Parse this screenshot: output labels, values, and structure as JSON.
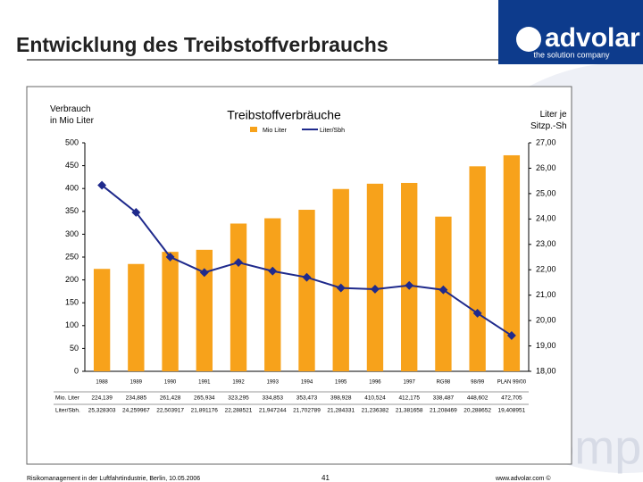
{
  "header": {
    "title": "Entwicklung des Treibstoffverbrauchs",
    "logo": "advolar",
    "tagline": "the solution company"
  },
  "chart_data": {
    "type": "combo",
    "title": "Treibstoffverbräuche",
    "y_label": "Verbrauch\nin Mio Liter",
    "y2_label": "Liter je\nSitzp.-Sh",
    "categories": [
      "1988",
      "1989",
      "1990",
      "1991",
      "1992",
      "1993",
      "1994",
      "1995",
      "1996",
      "1997",
      "RG98",
      "98/99",
      "PLAN 99/00"
    ],
    "series": [
      {
        "name": "Mio Liter",
        "color": "#f7a21b",
        "mark": "bar",
        "values": [
          224.139,
          234.885,
          261.428,
          265.934,
          323.295,
          334.853,
          353.473,
          398.928,
          410.524,
          412.175,
          338.487,
          448.602,
          472.705
        ],
        "value_labels": [
          "224,139",
          "234,885",
          "261,428",
          "265,934",
          "323,295",
          "334,853",
          "353,473",
          "398,928",
          "410,524",
          "412,175",
          "338,487",
          "448,602",
          "472,705"
        ]
      },
      {
        "name": "Liter/Sbh",
        "color": "#1f2a8c",
        "mark": "line",
        "axis": "y2",
        "values": [
          25.328303,
          24.259967,
          22.503917,
          21.891176,
          22.288521,
          21.947244,
          21.702789,
          21.284331,
          21.236382,
          21.381658,
          21.208469,
          20.288652,
          19.408951
        ],
        "value_labels": [
          "25,328303",
          "24,259967",
          "22,503917",
          "21,891176",
          "22,288521",
          "21,947244",
          "21,702789",
          "21,284331",
          "21,236382",
          "21,381658",
          "21,208469",
          "20,288652",
          "19,408951"
        ]
      }
    ],
    "ylim": [
      0,
      500
    ],
    "yticks": [
      0,
      50,
      100,
      150,
      200,
      250,
      300,
      350,
      400,
      450,
      500
    ],
    "y2lim": [
      18,
      27
    ],
    "y2ticks": [
      {
        "value": 18,
        "label": "18,00"
      },
      {
        "value": 19,
        "label": "19,00"
      },
      {
        "value": 20,
        "label": "20,00"
      },
      {
        "value": 21,
        "label": "21,00"
      },
      {
        "value": 22,
        "label": "22,00"
      },
      {
        "value": 23,
        "label": "23,00"
      },
      {
        "value": 24,
        "label": "24,00"
      },
      {
        "value": 25,
        "label": "25,00"
      },
      {
        "value": 26,
        "label": "26,00"
      },
      {
        "value": 27,
        "label": "27,00"
      }
    ],
    "table_row_labels": [
      "Mio. Liter",
      "Liter/Sbh."
    ]
  },
  "footer": {
    "text": "Risikomanagement in der Luftfahrtindustrie, Berlin, 10.05.2006",
    "page": "41",
    "url": "www.advolar.com ©",
    "watermark": "the solution company"
  }
}
